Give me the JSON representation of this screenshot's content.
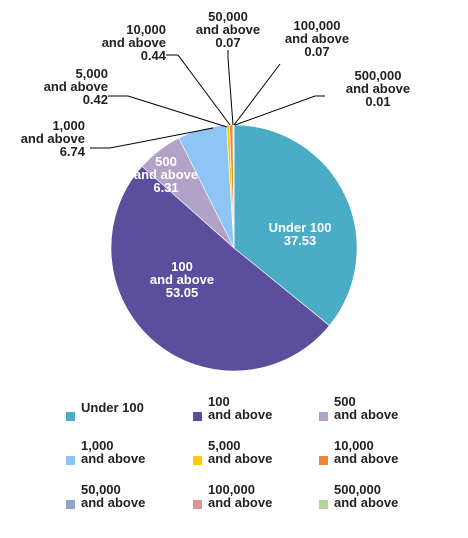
{
  "chart_data": {
    "type": "pie",
    "title": "",
    "slices": [
      {
        "label": [
          "Under 100"
        ],
        "value": 37.53,
        "color": "#4bacc6"
      },
      {
        "label": [
          "100",
          "and above"
        ],
        "value": 53.05,
        "color": "#5b4e9c"
      },
      {
        "label": [
          "500",
          "and above"
        ],
        "value": 6.31,
        "color": "#b3a2c7"
      },
      {
        "label": [
          "1,000",
          "and above"
        ],
        "value": 6.74,
        "color": "#8ec5f5"
      },
      {
        "label": [
          "5,000",
          "and above"
        ],
        "value": 0.42,
        "color": "#ffcc00"
      },
      {
        "label": [
          "10,000",
          "and above"
        ],
        "value": 0.44,
        "color": "#e8893a"
      },
      {
        "label": [
          "50,000",
          "and above"
        ],
        "value": 0.07,
        "color": "#8fa6cc"
      },
      {
        "label": [
          "100,000",
          "and above"
        ],
        "value": 0.07,
        "color": "#d99694"
      },
      {
        "label": [
          "500,000",
          "and above"
        ],
        "value": 0.01,
        "color": "#b5d59a"
      }
    ],
    "legend": "bottom",
    "value_labels": [
      "37.53",
      "53.05",
      "6.31",
      "6.74",
      "0.42",
      "0.44",
      "0.07",
      "0.07",
      "0.01"
    ]
  }
}
